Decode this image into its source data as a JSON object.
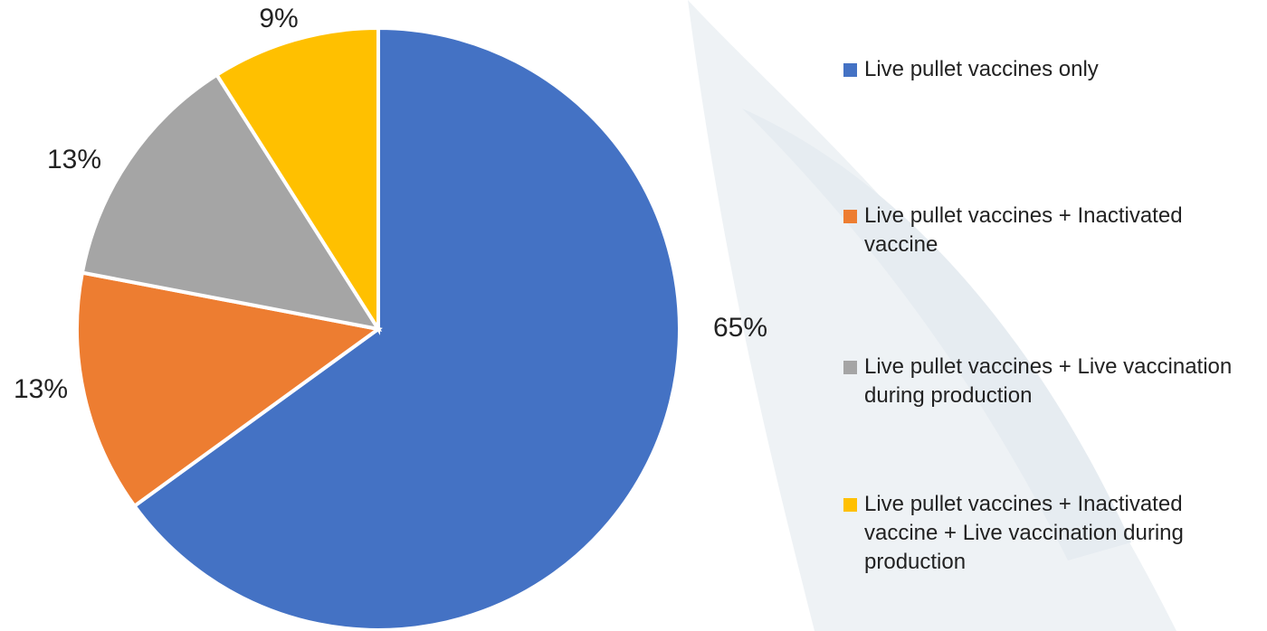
{
  "chart_data": {
    "type": "pie",
    "categories": [
      "Live pullet vaccines only",
      "Live pullet vaccines + Inactivated vaccine",
      "Live pullet vaccines + Live vaccination during  production",
      "Live pullet vaccines + Inactivated vaccine + Live vaccination during production"
    ],
    "values": [
      65,
      13,
      13,
      9
    ],
    "value_labels": [
      "65%",
      "13%",
      "13%",
      "9%"
    ],
    "colors": [
      "#4472c4",
      "#ed7d31",
      "#a5a5a5",
      "#ffc000"
    ],
    "legend": "right"
  }
}
